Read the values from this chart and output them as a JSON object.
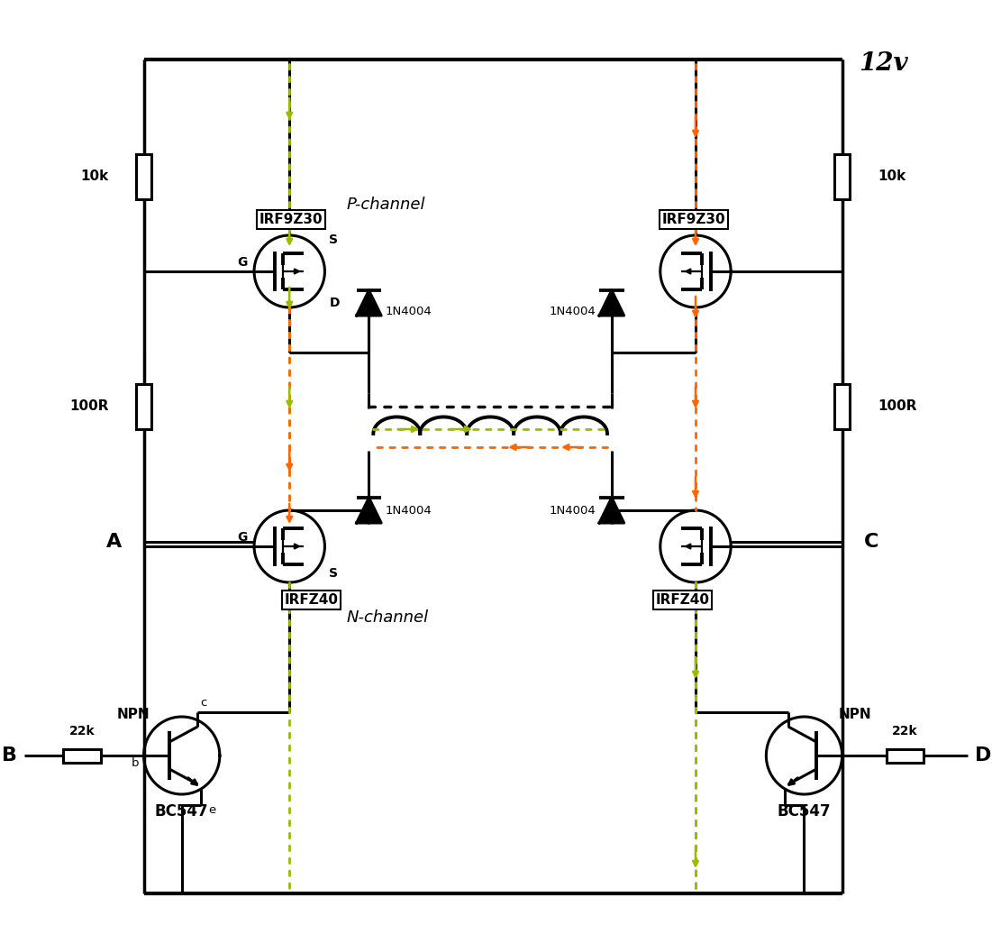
{
  "bg": "#ffffff",
  "lc": "#000000",
  "gc": "#99bb00",
  "oc": "#ff6600",
  "supply": "12v",
  "r10k_l": "10k",
  "r10k_r": "10k",
  "r100r_l": "100R",
  "r100r_r": "100R",
  "r22k_l": "22k",
  "r22k_r": "22k",
  "pmos_l": "IRF9Z30",
  "pmos_r": "IRF9Z30",
  "nmos_l": "IRFZ40",
  "nmos_r": "IRFZ40",
  "bjt_l": "BC547",
  "bjt_r": "BC547",
  "bjt_type": "NPN",
  "d1": "1N4004",
  "d2": "1N4004",
  "d3": "1N4004",
  "d4": "1N4004",
  "pchan": "P-channel",
  "nchan": "N-channel",
  "nA": "A",
  "nB": "B",
  "nC": "C",
  "nD": "D",
  "pS": "S",
  "pD": "D",
  "pG": "G",
  "pc": "c",
  "pb": "b",
  "pe": "e"
}
